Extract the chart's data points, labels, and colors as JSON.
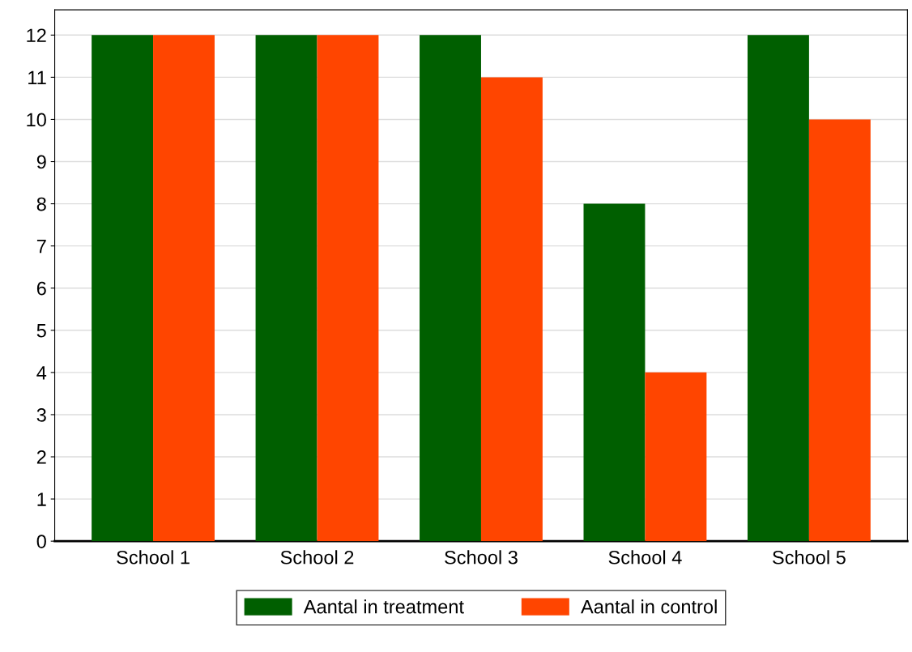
{
  "chart_data": {
    "type": "bar",
    "categories": [
      "School 1",
      "School 2",
      "School 3",
      "School 4",
      "School 5"
    ],
    "series": [
      {
        "name": "Aantal in treatment",
        "color": "#005f00",
        "values": [
          12,
          12,
          12,
          8,
          12
        ]
      },
      {
        "name": "Aantal in control",
        "color": "#ff4500",
        "values": [
          12,
          12,
          11,
          4,
          10
        ]
      }
    ],
    "ylim": [
      0,
      12.6
    ],
    "yticks": [
      0,
      1,
      2,
      3,
      4,
      5,
      6,
      7,
      8,
      9,
      10,
      11,
      12
    ],
    "grid": "y",
    "legend": "bottom"
  }
}
